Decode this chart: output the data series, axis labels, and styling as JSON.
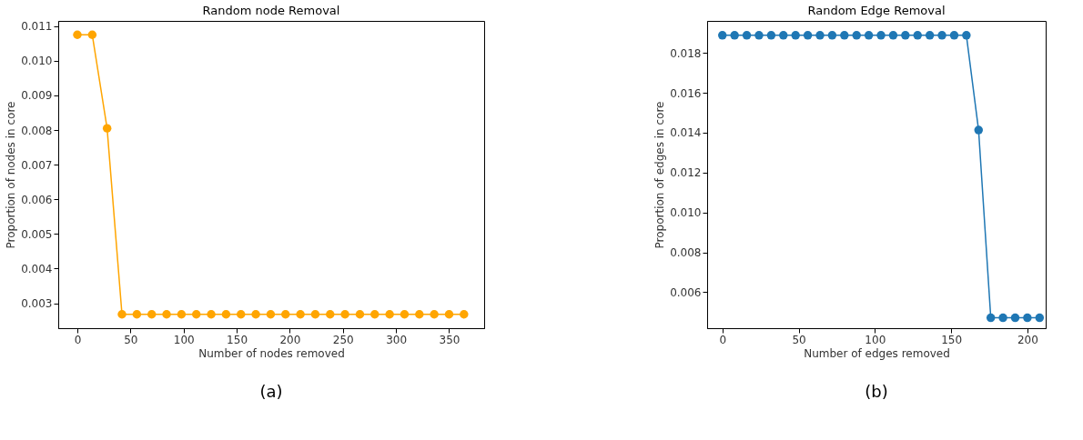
{
  "chart_data": [
    {
      "type": "line",
      "title": "Random node Removal",
      "xlabel": "Number of nodes removed",
      "ylabel": "Proportion of nodes in core",
      "x": [
        0,
        14,
        28,
        42,
        56,
        70,
        84,
        98,
        112,
        126,
        140,
        154,
        168,
        182,
        196,
        210,
        224,
        238,
        252,
        266,
        280,
        294,
        308,
        322,
        336,
        350,
        364
      ],
      "series": [
        {
          "color": "#ffa500",
          "values": [
            0.01075,
            0.01075,
            0.00805,
            0.00268,
            0.00268,
            0.00268,
            0.00268,
            0.00268,
            0.00268,
            0.00268,
            0.00268,
            0.00268,
            0.00268,
            0.00268,
            0.00268,
            0.00268,
            0.00268,
            0.00268,
            0.00268,
            0.00268,
            0.00268,
            0.00268,
            0.00268,
            0.00268,
            0.00268,
            0.00268,
            0.00268
          ]
        }
      ],
      "xlim": [
        -18,
        383
      ],
      "xticks": [
        0,
        50,
        100,
        150,
        200,
        250,
        300,
        350
      ],
      "ylim": [
        0.00228,
        0.01115
      ],
      "yticks": [
        {
          "value": 0.003,
          "label": "0.003"
        },
        {
          "value": 0.004,
          "label": "0.004"
        },
        {
          "value": 0.005,
          "label": "0.005"
        },
        {
          "value": 0.006,
          "label": "0.006"
        },
        {
          "value": 0.007,
          "label": "0.007"
        },
        {
          "value": 0.008,
          "label": "0.008"
        },
        {
          "value": 0.009,
          "label": "0.009"
        },
        {
          "value": 0.01,
          "label": "0.010"
        },
        {
          "value": 0.011,
          "label": "0.011"
        }
      ],
      "marker": "circle",
      "line_style": "solid",
      "grid": false,
      "annotations": [
        "(a)"
      ]
    },
    {
      "type": "line",
      "title": "Random Edge Removal",
      "xlabel": "Number of edges removed",
      "ylabel": "Proportion of edges in core",
      "x": [
        0,
        8,
        16,
        24,
        32,
        40,
        48,
        56,
        64,
        72,
        80,
        88,
        96,
        104,
        112,
        120,
        128,
        136,
        144,
        152,
        160,
        168,
        176,
        184,
        192,
        200,
        208
      ],
      "series": [
        {
          "color": "#1f77b4",
          "values": [
            0.01888,
            0.01888,
            0.01888,
            0.01888,
            0.01888,
            0.01888,
            0.01888,
            0.01888,
            0.01888,
            0.01888,
            0.01888,
            0.01888,
            0.01888,
            0.01888,
            0.01888,
            0.01888,
            0.01888,
            0.01888,
            0.01888,
            0.01888,
            0.01888,
            0.01413,
            0.00472,
            0.00472,
            0.00472,
            0.00472,
            0.00472
          ]
        }
      ],
      "xlim": [
        -10,
        212
      ],
      "xticks": [
        0,
        50,
        100,
        150,
        200
      ],
      "ylim": [
        0.0042,
        0.0196
      ],
      "yticks": [
        {
          "value": 0.006,
          "label": "0.006"
        },
        {
          "value": 0.008,
          "label": "0.008"
        },
        {
          "value": 0.01,
          "label": "0.010"
        },
        {
          "value": 0.012,
          "label": "0.012"
        },
        {
          "value": 0.014,
          "label": "0.014"
        },
        {
          "value": 0.016,
          "label": "0.016"
        },
        {
          "value": 0.018,
          "label": "0.018"
        }
      ],
      "marker": "circle",
      "line_style": "solid",
      "grid": false,
      "annotations": [
        "(b)"
      ]
    }
  ]
}
